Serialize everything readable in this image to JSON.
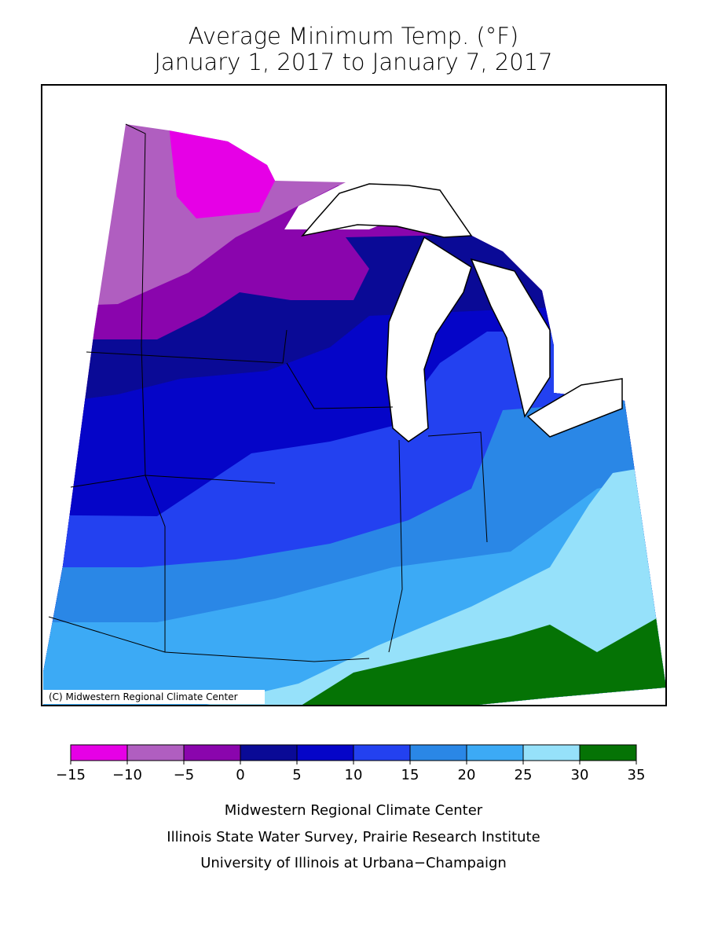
{
  "title": [
    "Average Minimum Temp. (°F)",
    "January 1, 2017 to January 7, 2017"
  ],
  "copyright": "(C) Midwestern Regional Climate Center",
  "legend": {
    "ticks": [
      {
        "value": -15,
        "label": "−15"
      },
      {
        "value": -10,
        "label": "−10"
      },
      {
        "value": -5,
        "label": "−5"
      },
      0,
      5,
      10,
      15,
      20,
      25,
      30,
      35
    ],
    "colors": [
      "#e600e6",
      "#b05ec0",
      "#8a05ad",
      "#0a0a96",
      "#0505c8",
      "#2341f0",
      "#2a87e6",
      "#3caaf5",
      "#96e1fa",
      "#057305"
    ]
  },
  "footer": [
    "Midwestern Regional Climate Center",
    "Illinois State Water Survey, Prairie Research Institute",
    "University of Illinois at Urbana−Champaign"
  ]
}
